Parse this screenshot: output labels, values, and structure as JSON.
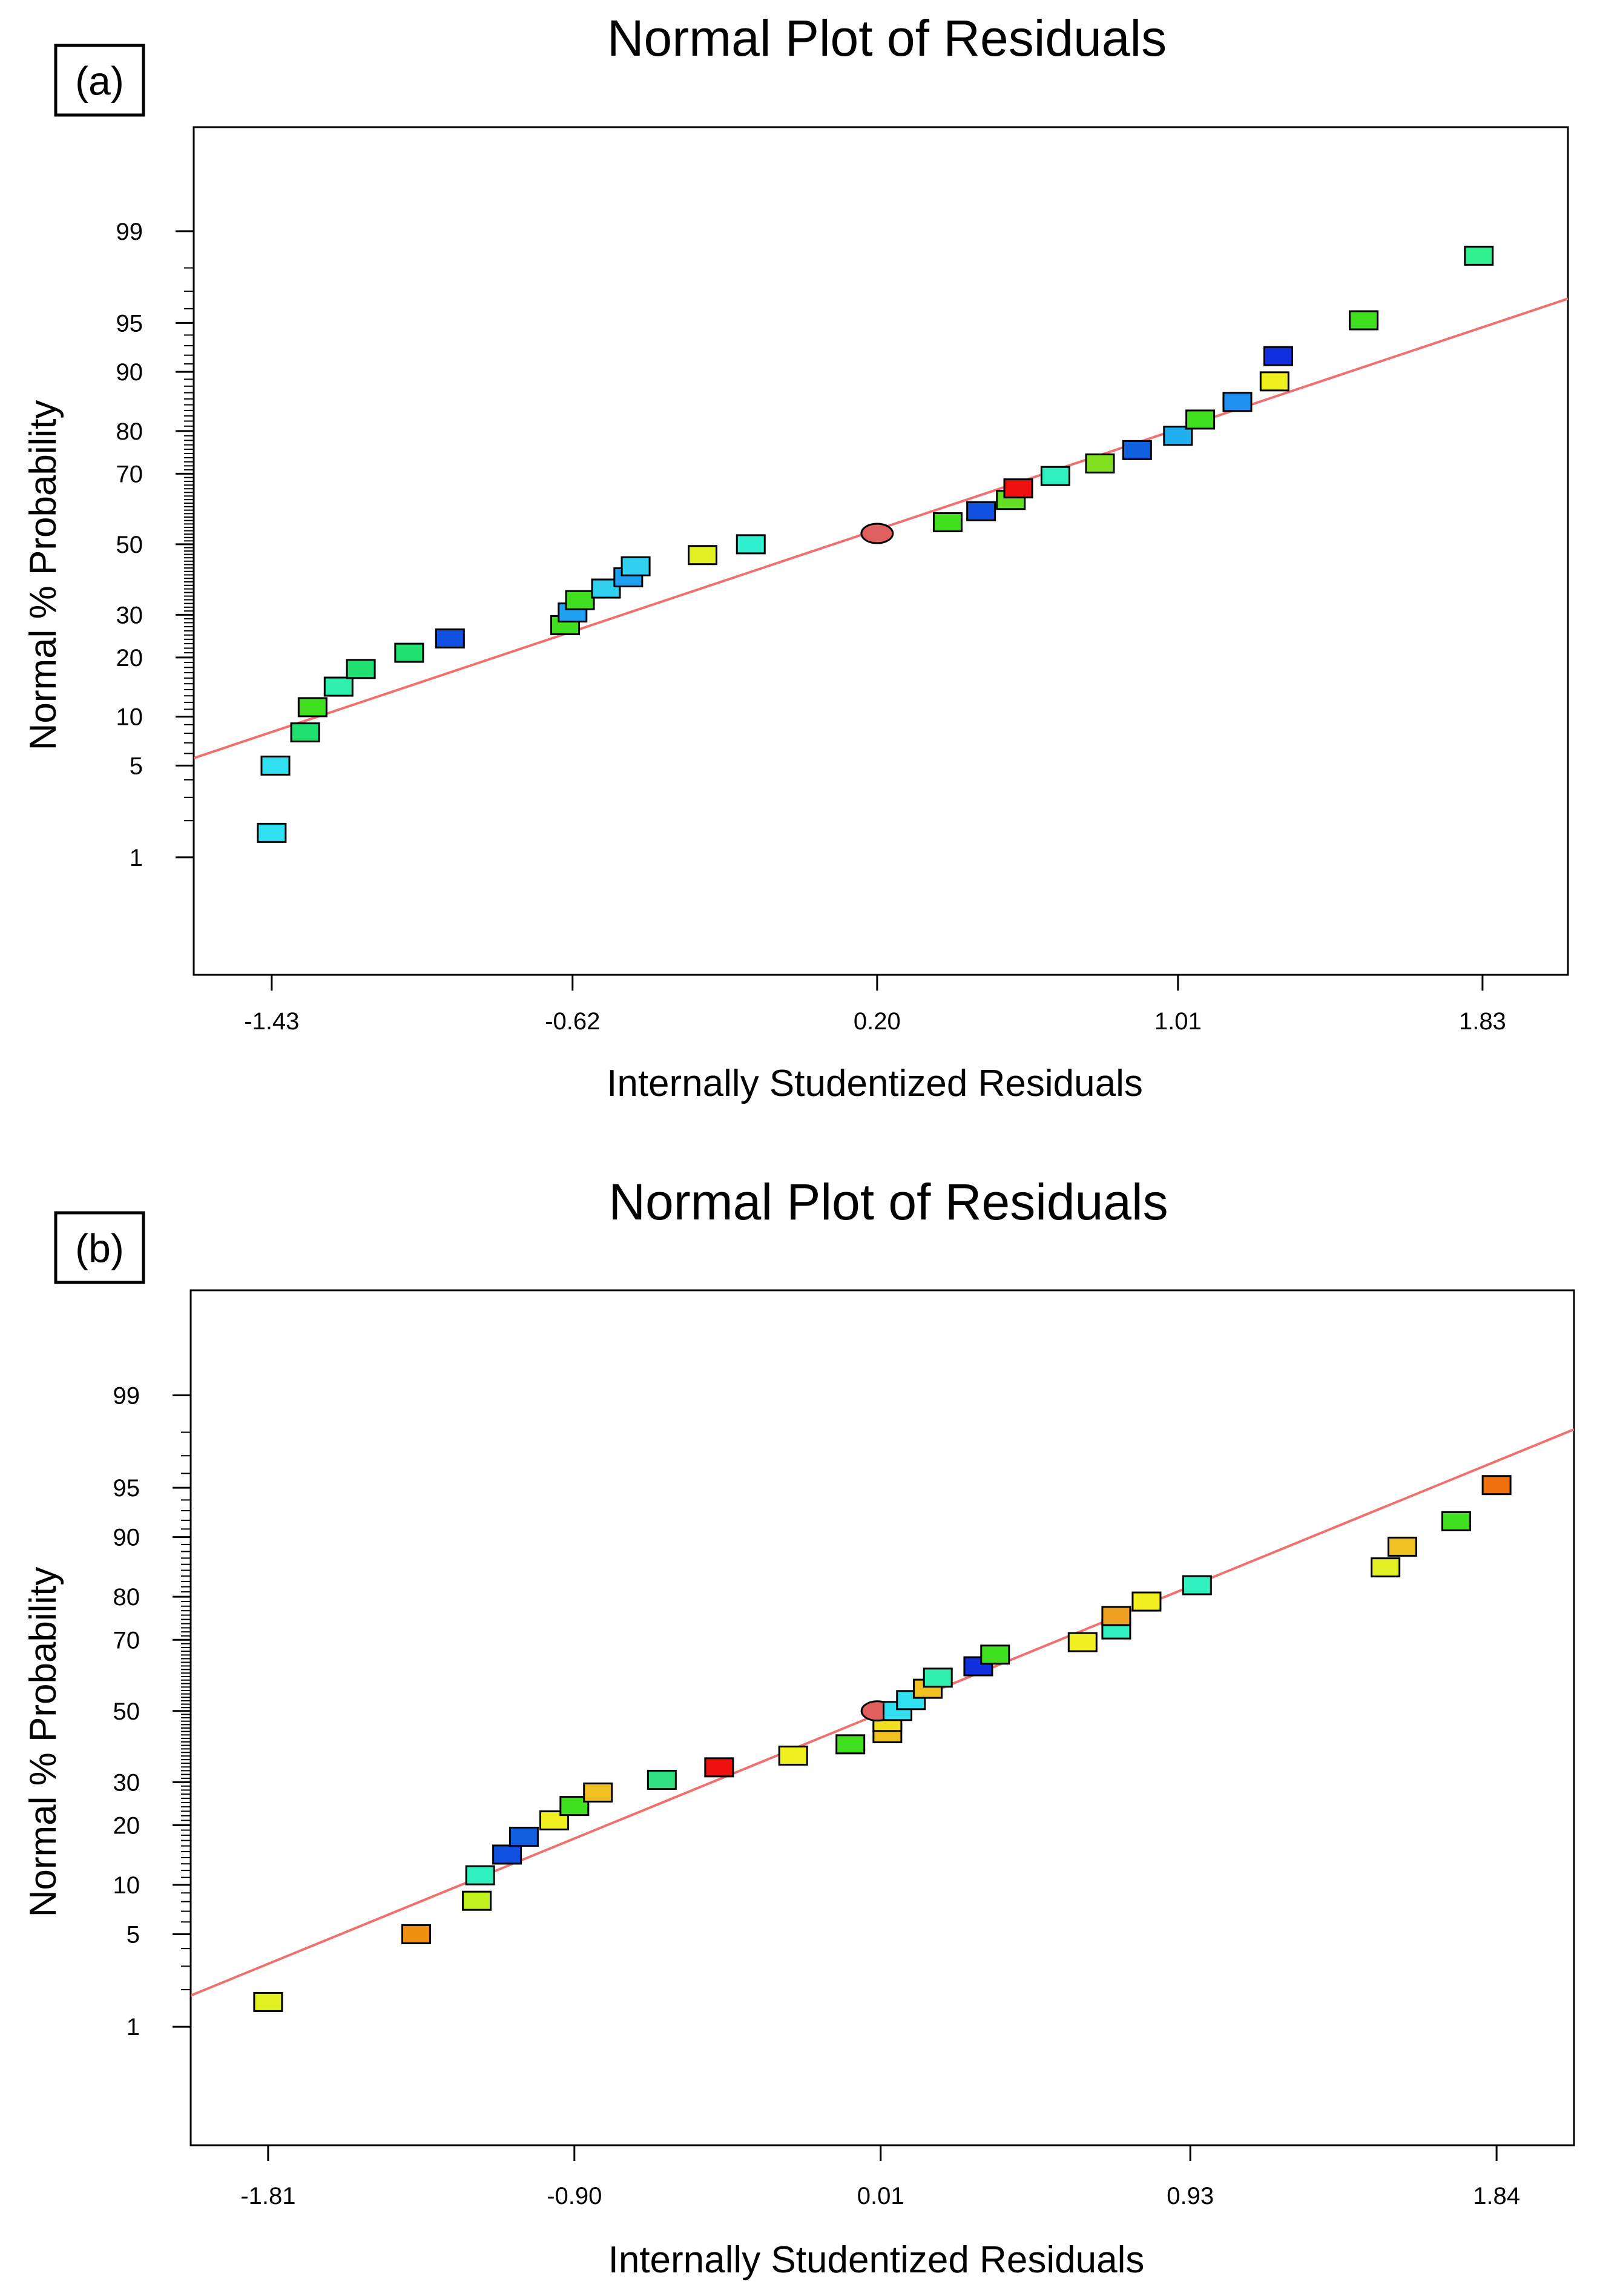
{
  "chart_data": [
    {
      "type": "scatter",
      "panel_label": "(a)",
      "title": "Normal Plot of Residuals",
      "xlabel": "Internally Studentized Residuals",
      "ylabel": "Normal % Probability",
      "x_ticks": [
        "-1.43",
        "-0.62",
        "0.20",
        "1.01",
        "1.83"
      ],
      "x_tick_values": [
        -1.43,
        -0.62,
        0.2,
        1.01,
        1.83
      ],
      "y_ticks": [
        "1",
        "5",
        "10",
        "20",
        "30",
        "50",
        "70",
        "80",
        "90",
        "95",
        "99"
      ],
      "y_tick_values": [
        1,
        5,
        10,
        20,
        30,
        50,
        70,
        80,
        90,
        95,
        99
      ],
      "xlim": [
        -1.64,
        2.06
      ],
      "y_scale": "normal probability",
      "ylim_z": [
        -3.2,
        3.1
      ],
      "fit_line": {
        "x": [
          -1.64,
          2.06
        ],
        "p": [
          5.6,
          96.6
        ],
        "color": "#f07070"
      },
      "points": [
        {
          "x": -1.43,
          "p": 1.6,
          "color": "#30e0f0"
        },
        {
          "x": -1.42,
          "p": 5,
          "color": "#30e0f0"
        },
        {
          "x": -1.34,
          "p": 8.1,
          "color": "#20e070"
        },
        {
          "x": -1.32,
          "p": 11.3,
          "color": "#40e020"
        },
        {
          "x": -1.25,
          "p": 14.5,
          "color": "#30f0b0"
        },
        {
          "x": -1.19,
          "p": 17.7,
          "color": "#20e070"
        },
        {
          "x": -1.06,
          "p": 21,
          "color": "#20e070"
        },
        {
          "x": -0.95,
          "p": 24.2,
          "color": "#1050e0"
        },
        {
          "x": -0.64,
          "p": 27.4,
          "color": "#40e020"
        },
        {
          "x": -0.62,
          "p": 30.6,
          "color": "#20a0f0"
        },
        {
          "x": -0.6,
          "p": 33.9,
          "color": "#40e020"
        },
        {
          "x": -0.53,
          "p": 37.1,
          "color": "#30d0f0"
        },
        {
          "x": -0.47,
          "p": 40.3,
          "color": "#20a0f0"
        },
        {
          "x": -0.45,
          "p": 43.5,
          "color": "#30d0f0"
        },
        {
          "x": -0.27,
          "p": 46.8,
          "color": "#e0f020"
        },
        {
          "x": -0.14,
          "p": 50,
          "color": "#30f0d0"
        },
        {
          "x": 0.2,
          "p": 53.2,
          "color": "#e06060",
          "marker": "ellipse"
        },
        {
          "x": 0.39,
          "p": 56.5,
          "color": "#40e020"
        },
        {
          "x": 0.48,
          "p": 59.7,
          "color": "#1050e0"
        },
        {
          "x": 0.56,
          "p": 62.9,
          "color": "#60e020"
        },
        {
          "x": 0.58,
          "p": 66.1,
          "color": "#f01010"
        },
        {
          "x": 0.68,
          "p": 69.4,
          "color": "#30f0c0"
        },
        {
          "x": 0.8,
          "p": 72.6,
          "color": "#80e020"
        },
        {
          "x": 0.9,
          "p": 75.8,
          "color": "#1060e0"
        },
        {
          "x": 1.01,
          "p": 79,
          "color": "#20b0f0"
        },
        {
          "x": 1.07,
          "p": 82.3,
          "color": "#40e020"
        },
        {
          "x": 1.17,
          "p": 85.5,
          "color": "#2090f0"
        },
        {
          "x": 1.27,
          "p": 88.7,
          "color": "#f0f020"
        },
        {
          "x": 1.28,
          "p": 91.9,
          "color": "#1030e0"
        },
        {
          "x": 1.51,
          "p": 95.2,
          "color": "#40e020"
        },
        {
          "x": 1.82,
          "p": 98.4,
          "color": "#30f090"
        }
      ]
    },
    {
      "type": "scatter",
      "panel_label": "(b)",
      "title": "Normal Plot of Residuals",
      "xlabel": "Internally Studentized Residuals",
      "ylabel": "Normal % Probability",
      "x_ticks": [
        "-1.81",
        "-0.90",
        "0.01",
        "0.93",
        "1.84"
      ],
      "x_tick_values": [
        -1.81,
        -0.9,
        0.01,
        0.93,
        1.84
      ],
      "y_ticks": [
        "1",
        "5",
        "10",
        "20",
        "30",
        "50",
        "70",
        "80",
        "90",
        "95",
        "99"
      ],
      "y_tick_values": [
        1,
        5,
        10,
        20,
        30,
        50,
        70,
        80,
        90,
        95,
        99
      ],
      "xlim": [
        -2.04,
        2.07
      ],
      "y_scale": "normal probability",
      "ylim_z": [
        -3.2,
        3.1
      ],
      "fit_line": {
        "x": [
          -2.04,
          2.07
        ],
        "p": [
          1.8,
          98.1
        ],
        "color": "#f07070"
      },
      "points": [
        {
          "x": -1.81,
          "p": 1.6,
          "color": "#e0f020"
        },
        {
          "x": -1.37,
          "p": 5,
          "color": "#f09010"
        },
        {
          "x": -1.19,
          "p": 8.1,
          "color": "#c0f020"
        },
        {
          "x": -1.18,
          "p": 11.3,
          "color": "#30f0c0"
        },
        {
          "x": -1.1,
          "p": 14.5,
          "color": "#1050e0"
        },
        {
          "x": -1.05,
          "p": 17.7,
          "color": "#1060e0"
        },
        {
          "x": -0.96,
          "p": 21,
          "color": "#f0f020"
        },
        {
          "x": -0.9,
          "p": 24.2,
          "color": "#40e020"
        },
        {
          "x": -0.83,
          "p": 27.4,
          "color": "#f0c020"
        },
        {
          "x": -0.64,
          "p": 30.6,
          "color": "#30e080"
        },
        {
          "x": -0.47,
          "p": 33.9,
          "color": "#f01010"
        },
        {
          "x": -0.25,
          "p": 37.1,
          "color": "#f0f020"
        },
        {
          "x": -0.08,
          "p": 40.3,
          "color": "#40e020"
        },
        {
          "x": 0.03,
          "p": 43.5,
          "color": "#f0c020"
        },
        {
          "x": 0.03,
          "p": 46.8,
          "color": "#f0e020"
        },
        {
          "x": 0.0,
          "p": 50,
          "color": "#e06060",
          "marker": "ellipse"
        },
        {
          "x": 0.06,
          "p": 50,
          "color": "#30e0f0"
        },
        {
          "x": 0.1,
          "p": 53.2,
          "color": "#30e0f0"
        },
        {
          "x": 0.15,
          "p": 56.5,
          "color": "#f0c020"
        },
        {
          "x": 0.18,
          "p": 59.7,
          "color": "#30f0b0"
        },
        {
          "x": 0.3,
          "p": 62.9,
          "color": "#1030e0"
        },
        {
          "x": 0.35,
          "p": 66.1,
          "color": "#40e020"
        },
        {
          "x": 0.61,
          "p": 69.4,
          "color": "#f0f020"
        },
        {
          "x": 0.71,
          "p": 72.6,
          "color": "#30f0c0"
        },
        {
          "x": 0.71,
          "p": 75.8,
          "color": "#f0a020"
        },
        {
          "x": 0.8,
          "p": 79,
          "color": "#f0f020"
        },
        {
          "x": 0.95,
          "p": 82.3,
          "color": "#30f0c0"
        },
        {
          "x": 1.51,
          "p": 85.5,
          "color": "#e0f020"
        },
        {
          "x": 1.56,
          "p": 88.7,
          "color": "#f0c020"
        },
        {
          "x": 1.72,
          "p": 91.9,
          "color": "#40e020"
        },
        {
          "x": 1.84,
          "p": 95.2,
          "color": "#f07010"
        }
      ]
    }
  ]
}
